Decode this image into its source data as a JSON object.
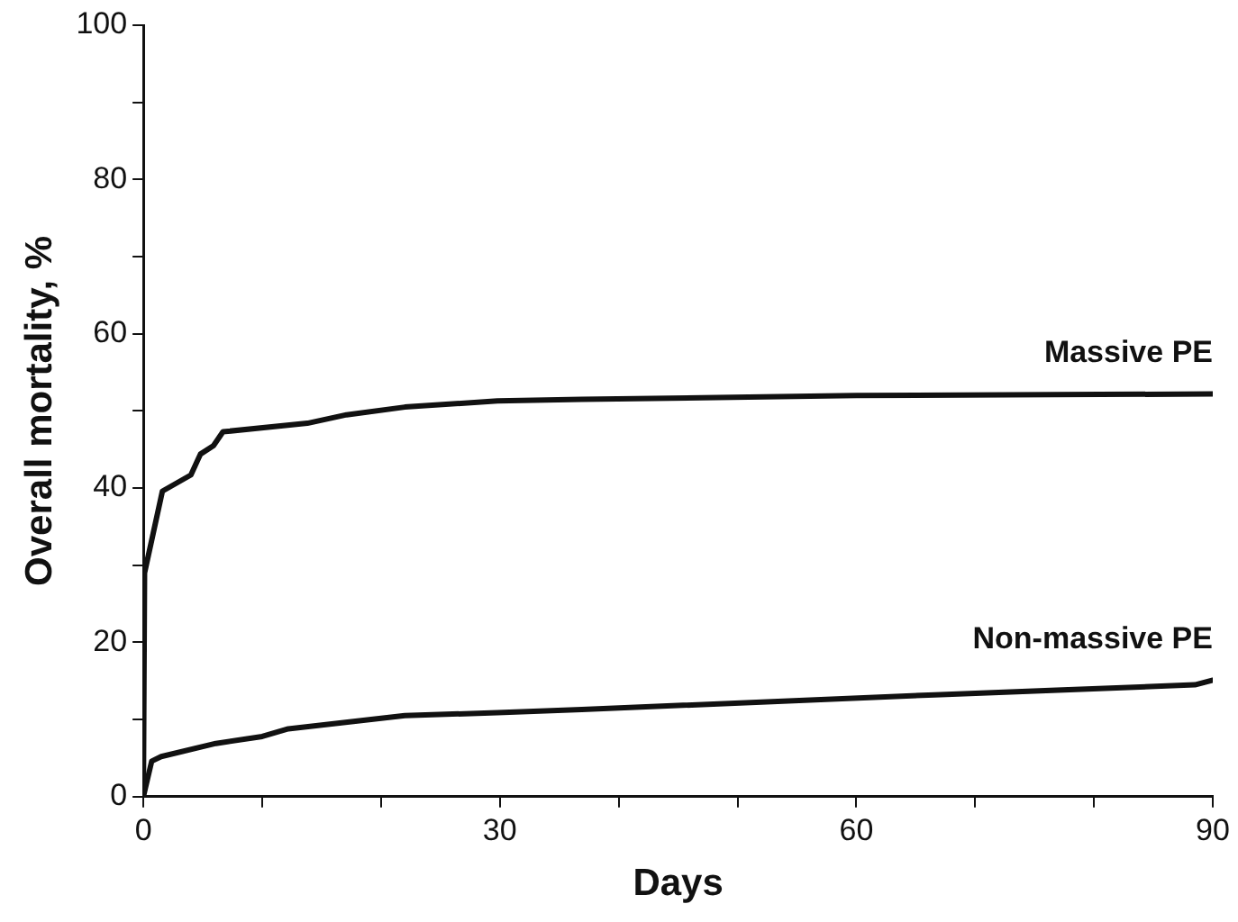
{
  "chart_data": {
    "type": "line",
    "xlabel": "Days",
    "ylabel": "Overall mortality, %",
    "xlim": [
      0,
      90
    ],
    "ylim": [
      0,
      100
    ],
    "xticks": [
      0,
      {
        "value": 10,
        "label": null
      },
      {
        "value": 20,
        "label": null
      },
      30,
      {
        "value": 40,
        "label": null
      },
      {
        "value": 50,
        "label": null
      },
      60,
      {
        "value": 70,
        "label": null
      },
      {
        "value": 80,
        "label": null
      },
      90
    ],
    "yticks": [
      0,
      {
        "value": 10,
        "label": null
      },
      20,
      {
        "value": 30,
        "label": null
      },
      40,
      {
        "value": 50,
        "label": null
      },
      60,
      {
        "value": 70,
        "label": null
      },
      80,
      {
        "value": 90,
        "label": null
      },
      100
    ],
    "grid": false,
    "legend": false,
    "marker": "none",
    "line_style": "solid",
    "series": [
      {
        "name": "Massive PE",
        "color": "#111111",
        "x": [
          0,
          0.1,
          1.6,
          4,
          4.8,
          5.9,
          6.7,
          13.8,
          17.1,
          22,
          29.8,
          36.9,
          60,
          90
        ],
        "values": [
          0,
          29,
          39.6,
          41.7,
          44.4,
          45.5,
          47.3,
          48.4,
          49.5,
          50.5,
          51.3,
          51.5,
          52,
          52.2
        ]
      },
      {
        "name": "Non-massive PE",
        "color": "#111111",
        "x": [
          0,
          0.7,
          1.5,
          6.1,
          10,
          12.2,
          22,
          29.8,
          36.9,
          66.6,
          88.5,
          90
        ],
        "values": [
          0,
          4.6,
          5.2,
          6.9,
          7.8,
          8.8,
          10.5,
          10.9,
          11.3,
          13.2,
          14.5,
          15.1
        ]
      }
    ]
  }
}
